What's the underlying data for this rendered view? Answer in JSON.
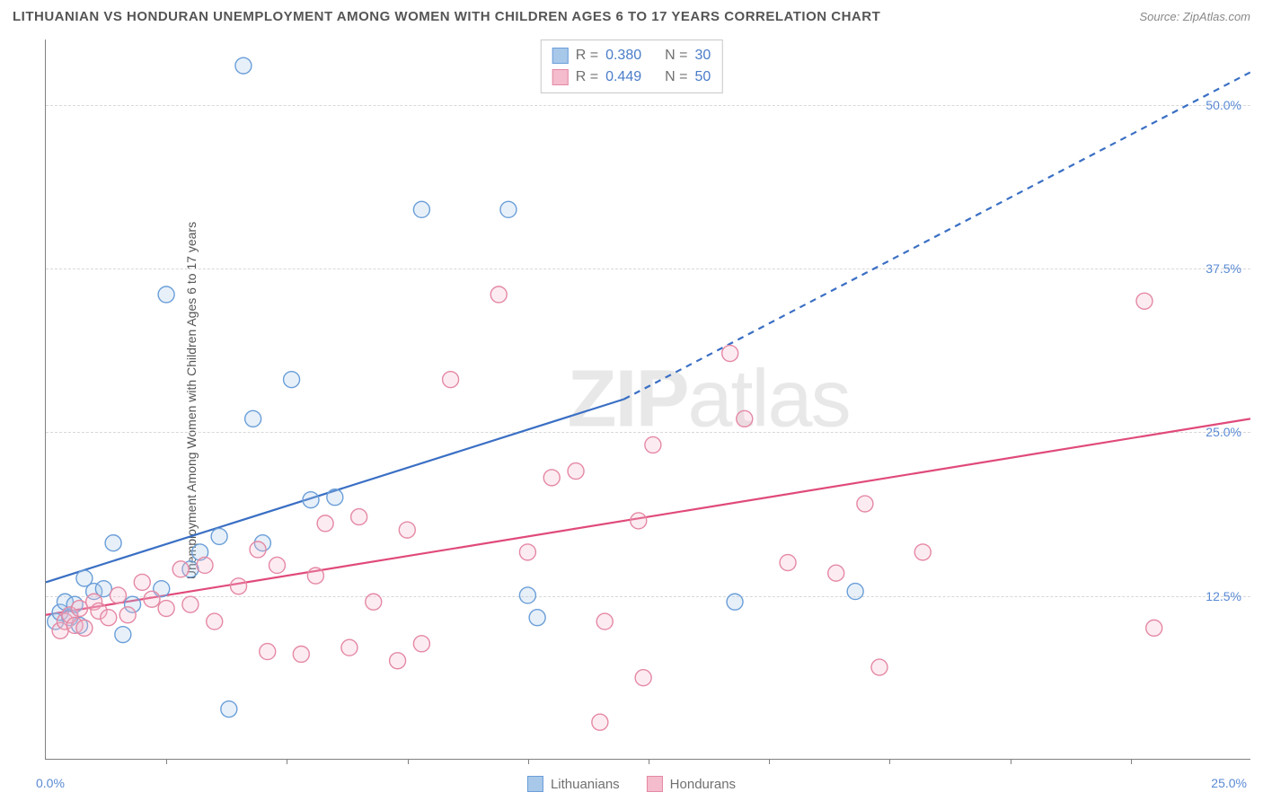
{
  "title": "LITHUANIAN VS HONDURAN UNEMPLOYMENT AMONG WOMEN WITH CHILDREN AGES 6 TO 17 YEARS CORRELATION CHART",
  "source": "Source: ZipAtlas.com",
  "ylabel": "Unemployment Among Women with Children Ages 6 to 17 years",
  "watermark_a": "ZIP",
  "watermark_b": "atlas",
  "chart": {
    "type": "scatter",
    "xlim": [
      0,
      25
    ],
    "ylim": [
      0,
      55
    ],
    "x_axis_label_left": "0.0%",
    "x_axis_label_right": "25.0%",
    "y_tick_labels": [
      "12.5%",
      "25.0%",
      "37.5%",
      "50.0%"
    ],
    "y_tick_values": [
      12.5,
      25.0,
      37.5,
      50.0
    ],
    "x_tick_values": [
      2.5,
      5,
      7.5,
      10,
      12.5,
      15,
      17.5,
      20,
      22.5
    ],
    "background_color": "#ffffff",
    "grid_color": "#d8d8d8",
    "axis_color": "#808080",
    "marker_radius": 9,
    "marker_stroke_width": 1.4,
    "marker_fill_opacity": 0.28,
    "line_width": 2.2
  },
  "series": [
    {
      "name": "Lithuanians",
      "color_stroke": "#6a9ed8",
      "color_fill": "#a8c8ea",
      "line_color": "#3a6fc4",
      "r_label": "R =",
      "r_value": "0.380",
      "n_label": "N =",
      "n_value": "30",
      "trend": {
        "x1": 0,
        "y1": 13.5,
        "x2": 12,
        "y2": 27.5,
        "x2_dash": 25,
        "y2_dash": 52.5
      },
      "points": [
        [
          0.2,
          10.5
        ],
        [
          0.3,
          11.2
        ],
        [
          0.4,
          12.0
        ],
        [
          0.5,
          10.8
        ],
        [
          0.6,
          11.8
        ],
        [
          0.7,
          10.2
        ],
        [
          0.8,
          13.8
        ],
        [
          1.0,
          12.8
        ],
        [
          1.2,
          13.0
        ],
        [
          1.4,
          16.5
        ],
        [
          1.6,
          9.5
        ],
        [
          1.8,
          11.8
        ],
        [
          2.4,
          13.0
        ],
        [
          2.5,
          35.5
        ],
        [
          3.0,
          14.5
        ],
        [
          3.2,
          15.8
        ],
        [
          3.6,
          17.0
        ],
        [
          3.8,
          3.8
        ],
        [
          4.1,
          53.0
        ],
        [
          4.3,
          26.0
        ],
        [
          4.5,
          16.5
        ],
        [
          5.1,
          29.0
        ],
        [
          5.5,
          19.8
        ],
        [
          6.0,
          20.0
        ],
        [
          7.8,
          42.0
        ],
        [
          9.6,
          42.0
        ],
        [
          10.0,
          12.5
        ],
        [
          10.2,
          10.8
        ],
        [
          14.3,
          12.0
        ],
        [
          16.8,
          12.8
        ]
      ]
    },
    {
      "name": "Hondurans",
      "color_stroke": "#e588a4",
      "color_fill": "#f4bccc",
      "line_color": "#e04a7a",
      "r_label": "R =",
      "r_value": "0.449",
      "n_label": "N =",
      "n_value": "50",
      "trend": {
        "x1": 0,
        "y1": 11.0,
        "x2": 25,
        "y2": 26.0,
        "x2_dash": 25,
        "y2_dash": 26.0
      },
      "points": [
        [
          0.3,
          9.8
        ],
        [
          0.4,
          10.5
        ],
        [
          0.5,
          11.0
        ],
        [
          0.6,
          10.2
        ],
        [
          0.7,
          11.5
        ],
        [
          0.8,
          10.0
        ],
        [
          1.0,
          12.0
        ],
        [
          1.1,
          11.3
        ],
        [
          1.3,
          10.8
        ],
        [
          1.5,
          12.5
        ],
        [
          1.7,
          11.0
        ],
        [
          2.0,
          13.5
        ],
        [
          2.2,
          12.2
        ],
        [
          2.5,
          11.5
        ],
        [
          2.8,
          14.5
        ],
        [
          3.0,
          11.8
        ],
        [
          3.3,
          14.8
        ],
        [
          3.5,
          10.5
        ],
        [
          4.0,
          13.2
        ],
        [
          4.4,
          16.0
        ],
        [
          4.6,
          8.2
        ],
        [
          4.8,
          14.8
        ],
        [
          5.3,
          8.0
        ],
        [
          5.6,
          14.0
        ],
        [
          5.8,
          18.0
        ],
        [
          6.3,
          8.5
        ],
        [
          6.5,
          18.5
        ],
        [
          6.8,
          12.0
        ],
        [
          7.3,
          7.5
        ],
        [
          7.5,
          17.5
        ],
        [
          7.8,
          8.8
        ],
        [
          8.4,
          29.0
        ],
        [
          9.4,
          35.5
        ],
        [
          10.0,
          15.8
        ],
        [
          10.5,
          21.5
        ],
        [
          11.0,
          22.0
        ],
        [
          11.5,
          2.8
        ],
        [
          11.6,
          10.5
        ],
        [
          12.3,
          18.2
        ],
        [
          12.4,
          6.2
        ],
        [
          12.6,
          24.0
        ],
        [
          14.2,
          31.0
        ],
        [
          14.5,
          26.0
        ],
        [
          15.4,
          15.0
        ],
        [
          16.4,
          14.2
        ],
        [
          17.0,
          19.5
        ],
        [
          17.3,
          7.0
        ],
        [
          18.2,
          15.8
        ],
        [
          22.8,
          35.0
        ],
        [
          23.0,
          10.0
        ]
      ]
    }
  ],
  "legend_top": {
    "title": ""
  },
  "legend_bottom": [
    {
      "label": "Lithuanians",
      "stroke": "#6a9ed8",
      "fill": "#a8c8ea"
    },
    {
      "label": "Hondurans",
      "stroke": "#e588a4",
      "fill": "#f4bccc"
    }
  ]
}
